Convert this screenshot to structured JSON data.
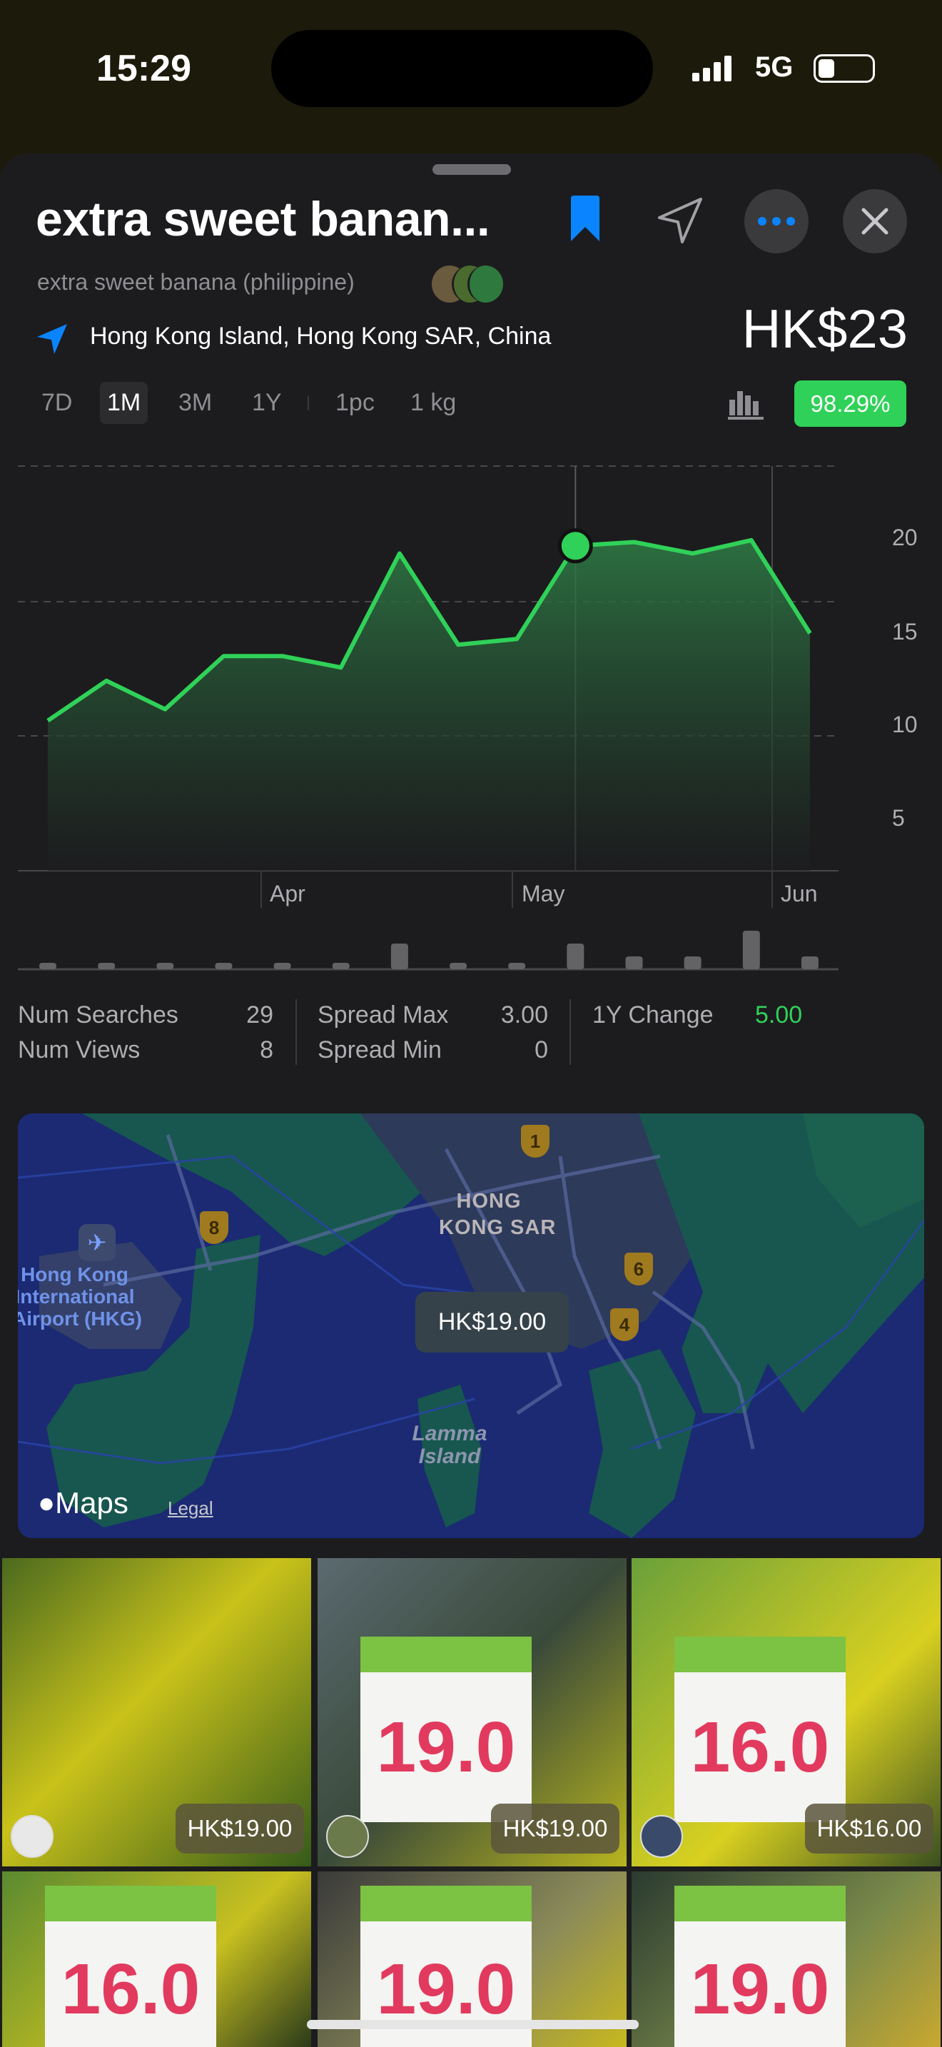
{
  "status_bar": {
    "time": "15:29",
    "network": "5G",
    "signal_bars": 4,
    "battery_level": 0.35
  },
  "header": {
    "title": "extra sweet banan...",
    "subtitle": "extra sweet banana (philippine)",
    "location": "Hong Kong Island, Hong Kong SAR, China",
    "price": "HK$23",
    "bookmarked": true,
    "accent_color": "#0a84ff"
  },
  "filters": {
    "ranges": [
      "7D",
      "1M",
      "3M",
      "1Y"
    ],
    "selected_range": "1M",
    "units": [
      "1pc",
      "1 kg"
    ],
    "badge": "98.29%",
    "badge_color": "#30d158"
  },
  "chart_data": {
    "type": "area",
    "x_tick_labels": [
      "Apr",
      "May",
      "Jun"
    ],
    "y_ticks": [
      5,
      10,
      15,
      20
    ],
    "values": [
      10.1,
      12.2,
      10.7,
      13.5,
      13.5,
      12.9,
      18.9,
      14.1,
      14.4,
      19.3,
      19.5,
      18.9,
      19.6,
      14.7
    ],
    "selected_index": 9,
    "volume": [
      1,
      1,
      1,
      1,
      1,
      1,
      4,
      1,
      1,
      4,
      2,
      2,
      6,
      2
    ],
    "line_color": "#30d158",
    "ylim": [
      2.2,
      23.5
    ]
  },
  "stats": {
    "num_searches_label": "Num Searches",
    "num_searches": "29",
    "num_views_label": "Num Views",
    "num_views": "8",
    "spread_max_label": "Spread Max",
    "spread_max": "3.00",
    "spread_min_label": "Spread Min",
    "spread_min": "0",
    "change_label": "1Y Change",
    "change": "5.00"
  },
  "map": {
    "labels": {
      "city": "HONG\nKONG SAR",
      "airport": "Hong Kong\nInternational\nAirport (HKG)",
      "island": "Lamma\nIsland"
    },
    "route_shields": [
      "1",
      "8",
      "6",
      "4"
    ],
    "price_pin": "HK$19.00",
    "brand": "Maps",
    "legal": "Legal"
  },
  "photos": [
    {
      "price": "HK$19.00",
      "sign": ""
    },
    {
      "price": "HK$19.00",
      "sign": "19.0"
    },
    {
      "price": "HK$16.00",
      "sign": "16.0"
    },
    {
      "price": "",
      "sign": "16.0"
    },
    {
      "price": "",
      "sign": "19.0"
    },
    {
      "price": "",
      "sign": "19.0"
    }
  ]
}
